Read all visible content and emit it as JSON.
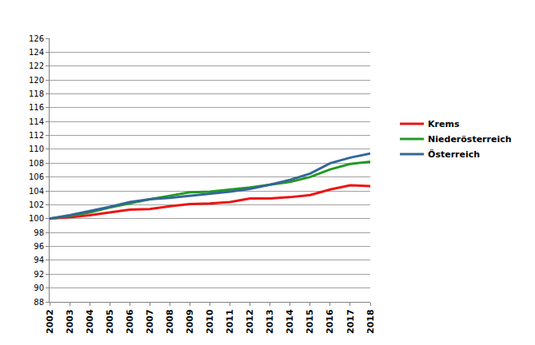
{
  "chart_data": {
    "type": "line",
    "x": [
      2002,
      2003,
      2004,
      2005,
      2006,
      2007,
      2008,
      2009,
      2010,
      2011,
      2012,
      2013,
      2014,
      2015,
      2016,
      2017,
      2018
    ],
    "series": [
      {
        "name": "Krems",
        "color": "#ee1111",
        "values": [
          100,
          100.2,
          100.5,
          100.9,
          101.3,
          101.4,
          101.8,
          102.1,
          102.2,
          102.4,
          102.9,
          102.9,
          103.1,
          103.4,
          104.2,
          104.8,
          104.7
        ]
      },
      {
        "name": "Niederösterreich",
        "color": "#229922",
        "values": [
          100,
          100.4,
          100.9,
          101.6,
          102.2,
          102.8,
          103.3,
          103.8,
          103.9,
          104.2,
          104.5,
          104.9,
          105.3,
          106.0,
          107.1,
          107.9,
          108.2
        ]
      },
      {
        "name": "Österreich",
        "color": "#336699",
        "values": [
          100,
          100.5,
          101.1,
          101.7,
          102.4,
          102.8,
          103.0,
          103.3,
          103.6,
          103.9,
          104.3,
          104.9,
          105.6,
          106.5,
          108.0,
          108.8,
          109.4
        ]
      }
    ],
    "xlim": [
      2002,
      2018
    ],
    "xticks": [
      2002,
      2003,
      2004,
      2005,
      2006,
      2007,
      2008,
      2009,
      2010,
      2011,
      2012,
      2013,
      2014,
      2015,
      2016,
      2017,
      2018
    ],
    "ylim": [
      88,
      126
    ],
    "yticks": [
      88,
      90,
      92,
      94,
      96,
      98,
      100,
      102,
      104,
      106,
      108,
      110,
      112,
      114,
      116,
      118,
      120,
      122,
      124,
      126
    ],
    "grid": true,
    "legend": "right"
  }
}
